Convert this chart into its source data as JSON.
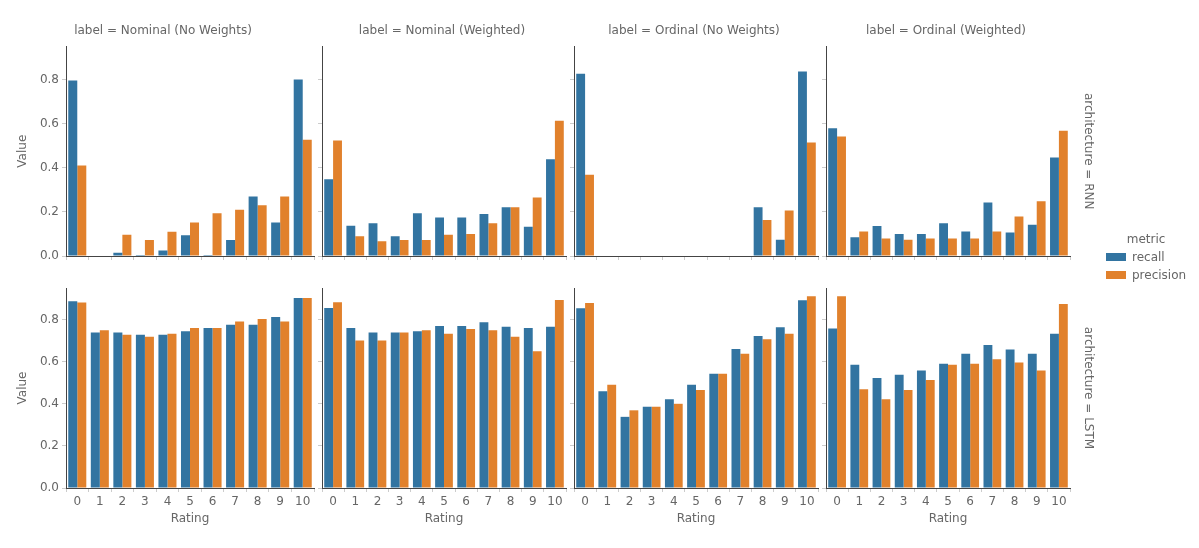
{
  "chart_data": [
    {
      "type": "bar",
      "title": "label = Nominal (No Weights)",
      "ylabel": "Value",
      "categories": [
        "0",
        "1",
        "2",
        "3",
        "4",
        "5",
        "6",
        "7",
        "8",
        "9",
        "10"
      ],
      "ylim": [
        0,
        0.95
      ],
      "yticks": [
        {
          "value": 0,
          "label": "0.0"
        },
        {
          "value": 0.2,
          "label": "0.2"
        },
        {
          "value": 0.4,
          "label": "0.4"
        },
        {
          "value": 0.6,
          "label": "0.6"
        },
        {
          "value": 0.8,
          "label": "0.8"
        }
      ],
      "tick_labels": "y",
      "grid": false,
      "series": [
        {
          "color": "#3274a1",
          "values": [
            0.795,
            0,
            0.015,
            0.005,
            0.025,
            0.094,
            0.005,
            0.073,
            0.27,
            0.152,
            0.8
          ]
        },
        {
          "color": "#e1812c",
          "values": [
            0.41,
            0,
            0.096,
            0.073,
            0.11,
            0.152,
            0.194,
            0.21,
            0.23,
            0.27,
            0.527
          ]
        }
      ]
    },
    {
      "type": "bar",
      "title": "label = Nominal (Weighted)",
      "categories": [
        "0",
        "1",
        "2",
        "3",
        "4",
        "5",
        "6",
        "7",
        "8",
        "9",
        "10"
      ],
      "ylim": [
        0,
        0.95
      ],
      "yticks": [
        {
          "value": 0,
          "label": null
        },
        {
          "value": 0.2,
          "label": null
        },
        {
          "value": 0.4,
          "label": null
        },
        {
          "value": 0.6,
          "label": null
        },
        {
          "value": 0.8,
          "label": null
        }
      ],
      "tick_labels": false,
      "grid": false,
      "series": [
        {
          "color": "#3274a1",
          "values": [
            0.348,
            0.137,
            0.148,
            0.09,
            0.194,
            0.175,
            0.175,
            0.19,
            0.221,
            0.133,
            0.438
          ]
        },
        {
          "color": "#e1812c",
          "values": [
            0.523,
            0.09,
            0.067,
            0.073,
            0.073,
            0.096,
            0.1,
            0.148,
            0.221,
            0.265,
            0.613
          ]
        }
      ]
    },
    {
      "type": "bar",
      "title": "label = Ordinal (No Weights)",
      "categories": [
        "0",
        "1",
        "2",
        "3",
        "4",
        "5",
        "6",
        "7",
        "8",
        "9",
        "10"
      ],
      "ylim": [
        0,
        0.95
      ],
      "yticks": [
        {
          "value": 0,
          "label": null
        },
        {
          "value": 0.2,
          "label": null
        },
        {
          "value": 0.4,
          "label": null
        },
        {
          "value": 0.6,
          "label": null
        },
        {
          "value": 0.8,
          "label": null
        }
      ],
      "tick_labels": false,
      "grid": false,
      "series": [
        {
          "color": "#3274a1",
          "values": [
            0.826,
            0,
            0,
            0,
            0,
            0,
            0,
            0,
            0.221,
            0.074,
            0.836
          ]
        },
        {
          "color": "#e1812c",
          "values": [
            0.368,
            0,
            0,
            0,
            0,
            0,
            0,
            0,
            0.163,
            0.206,
            0.515
          ]
        }
      ]
    },
    {
      "type": "bar",
      "title": "label = Ordinal (Weighted)",
      "annotations": [
        "architecture = RNN"
      ],
      "legend": "right",
      "legend_title": "metric",
      "categories": [
        "0",
        "1",
        "2",
        "3",
        "4",
        "5",
        "6",
        "7",
        "8",
        "9",
        "10"
      ],
      "ylim": [
        0,
        0.95
      ],
      "yticks": [
        {
          "value": 0,
          "label": null
        },
        {
          "value": 0.2,
          "label": null
        },
        {
          "value": 0.4,
          "label": null
        },
        {
          "value": 0.6,
          "label": null
        },
        {
          "value": 0.8,
          "label": null
        }
      ],
      "tick_labels": false,
      "grid": false,
      "series": [
        {
          "name": "recall",
          "color": "#3274a1",
          "values": [
            0.579,
            0.085,
            0.136,
            0.1,
            0.1,
            0.149,
            0.111,
            0.243,
            0.106,
            0.142,
            0.447
          ]
        },
        {
          "name": "precision",
          "color": "#e1812c",
          "values": [
            0.542,
            0.111,
            0.079,
            0.074,
            0.079,
            0.079,
            0.079,
            0.111,
            0.179,
            0.248,
            0.568
          ]
        }
      ]
    },
    {
      "type": "bar",
      "xlabel": "Rating",
      "ylabel": "Value",
      "categories": [
        "0",
        "1",
        "2",
        "3",
        "4",
        "5",
        "6",
        "7",
        "8",
        "9",
        "10"
      ],
      "ylim": [
        0,
        0.95
      ],
      "yticks": [
        {
          "value": 0,
          "label": "0.0"
        },
        {
          "value": 0.2,
          "label": "0.2"
        },
        {
          "value": 0.4,
          "label": "0.4"
        },
        {
          "value": 0.6,
          "label": "0.6"
        },
        {
          "value": 0.8,
          "label": "0.8"
        }
      ],
      "grid": false,
      "series": [
        {
          "color": "#3274a1",
          "values": [
            0.887,
            0.739,
            0.739,
            0.728,
            0.728,
            0.745,
            0.76,
            0.775,
            0.775,
            0.812,
            0.903
          ]
        },
        {
          "color": "#e1812c",
          "values": [
            0.881,
            0.749,
            0.728,
            0.718,
            0.733,
            0.76,
            0.76,
            0.791,
            0.803,
            0.791,
            0.903
          ]
        }
      ]
    },
    {
      "type": "bar",
      "xlabel": "Rating",
      "categories": [
        "0",
        "1",
        "2",
        "3",
        "4",
        "5",
        "6",
        "7",
        "8",
        "9",
        "10"
      ],
      "ylim": [
        0,
        0.95
      ],
      "yticks": [
        {
          "value": 0,
          "label": null
        },
        {
          "value": 0.2,
          "label": null
        },
        {
          "value": 0.4,
          "label": null
        },
        {
          "value": 0.6,
          "label": null
        },
        {
          "value": 0.8,
          "label": null
        }
      ],
      "tick_labels": "x",
      "grid": false,
      "series": [
        {
          "color": "#3274a1",
          "values": [
            0.855,
            0.76,
            0.739,
            0.739,
            0.745,
            0.77,
            0.77,
            0.787,
            0.766,
            0.76,
            0.766
          ]
        },
        {
          "color": "#e1812c",
          "values": [
            0.882,
            0.701,
            0.701,
            0.739,
            0.749,
            0.733,
            0.755,
            0.749,
            0.718,
            0.649,
            0.893
          ]
        }
      ]
    },
    {
      "type": "bar",
      "xlabel": "Rating",
      "categories": [
        "0",
        "1",
        "2",
        "3",
        "4",
        "5",
        "6",
        "7",
        "8",
        "9",
        "10"
      ],
      "ylim": [
        0,
        0.95
      ],
      "yticks": [
        {
          "value": 0,
          "label": null
        },
        {
          "value": 0.2,
          "label": null
        },
        {
          "value": 0.4,
          "label": null
        },
        {
          "value": 0.6,
          "label": null
        },
        {
          "value": 0.8,
          "label": null
        }
      ],
      "tick_labels": "x",
      "grid": false,
      "series": [
        {
          "color": "#3274a1",
          "values": [
            0.854,
            0.46,
            0.338,
            0.386,
            0.422,
            0.49,
            0.543,
            0.66,
            0.722,
            0.764,
            0.892
          ]
        },
        {
          "color": "#e1812c",
          "values": [
            0.879,
            0.49,
            0.369,
            0.386,
            0.4,
            0.465,
            0.543,
            0.638,
            0.707,
            0.733,
            0.911
          ]
        }
      ]
    },
    {
      "type": "bar",
      "xlabel": "Rating",
      "annotations": [
        "architecture = LSTM"
      ],
      "categories": [
        "0",
        "1",
        "2",
        "3",
        "4",
        "5",
        "6",
        "7",
        "8",
        "9",
        "10"
      ],
      "ylim": [
        0,
        0.95
      ],
      "yticks": [
        {
          "value": 0,
          "label": null
        },
        {
          "value": 0.2,
          "label": null
        },
        {
          "value": 0.4,
          "label": null
        },
        {
          "value": 0.6,
          "label": null
        },
        {
          "value": 0.8,
          "label": null
        }
      ],
      "tick_labels": "x",
      "grid": false,
      "series": [
        {
          "color": "#3274a1",
          "values": [
            0.758,
            0.585,
            0.522,
            0.538,
            0.558,
            0.59,
            0.638,
            0.679,
            0.658,
            0.638,
            0.733
          ]
        },
        {
          "color": "#e1812c",
          "values": [
            0.911,
            0.469,
            0.422,
            0.465,
            0.513,
            0.585,
            0.59,
            0.611,
            0.596,
            0.558,
            0.874
          ]
        }
      ]
    }
  ]
}
